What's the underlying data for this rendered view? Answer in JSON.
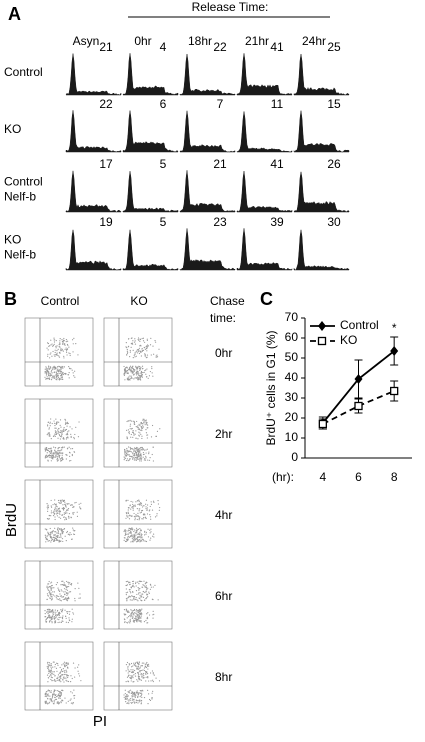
{
  "panel_a": {
    "label": "A",
    "header": "Release Time:",
    "columns": [
      "Asyn",
      "0hr",
      "18hr",
      "21hr",
      "24hr"
    ],
    "rows": [
      {
        "label_lines": [
          "Control"
        ],
        "values": [
          21,
          4,
          22,
          41,
          25
        ]
      },
      {
        "label_lines": [
          "KO"
        ],
        "values": [
          22,
          6,
          7,
          11,
          15
        ]
      },
      {
        "label_lines": [
          "Control",
          "Nelf-b"
        ],
        "values": [
          17,
          5,
          21,
          41,
          26
        ]
      },
      {
        "label_lines": [
          "KO",
          "Nelf-b"
        ],
        "values": [
          19,
          5,
          23,
          39,
          30
        ]
      }
    ]
  },
  "panel_b": {
    "label": "B",
    "columns": [
      "Control",
      "KO"
    ],
    "side_header": [
      "Chase",
      "time:"
    ],
    "rows": [
      "0hr",
      "2hr",
      "4hr",
      "6hr",
      "8hr"
    ],
    "y_label": "BrdU",
    "x_label": "PI"
  },
  "chart_data": {
    "type": "line",
    "label": "C",
    "ylabel": "BrdU⁺ cells in G1 (%)",
    "xlabel": "(hr):",
    "categories": [
      "4",
      "6",
      "8"
    ],
    "series": [
      {
        "name": "Control",
        "color": "#000000",
        "marker": "diamond",
        "dashed": false,
        "values": [
          17.5,
          39.5,
          53.5
        ],
        "errors": [
          3,
          9.5,
          7
        ]
      },
      {
        "name": "KO",
        "color": "#000000",
        "marker": "square",
        "dashed": true,
        "values": [
          17,
          26,
          33.5
        ],
        "errors": [
          2.5,
          3.5,
          5
        ]
      }
    ],
    "annotations": [
      {
        "text": "*",
        "category": 2
      }
    ],
    "ylim": [
      0,
      70
    ],
    "yticks": [
      0,
      10,
      20,
      30,
      40,
      50,
      60,
      70
    ],
    "legend": "upper-left"
  }
}
